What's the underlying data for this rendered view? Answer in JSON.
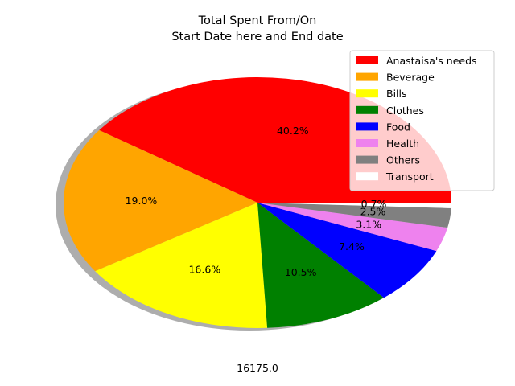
{
  "chart_data": {
    "type": "pie",
    "title_line1": "Total Spent From/On",
    "title_line2": "Start Date here and End date",
    "total_label": "16175.0",
    "shadow": true,
    "start_angle_deg": 0,
    "legend_position": "upper-right",
    "slices": [
      {
        "label": "Anastaisa's needs",
        "percent": 40.2,
        "pct_label": "40.2%",
        "color": "#ff0000"
      },
      {
        "label": "Beverage",
        "percent": 19.0,
        "pct_label": "19.0%",
        "color": "#ffa500"
      },
      {
        "label": "Bills",
        "percent": 16.6,
        "pct_label": "16.6%",
        "color": "#ffff00"
      },
      {
        "label": "Clothes",
        "percent": 10.5,
        "pct_label": "10.5%",
        "color": "#008000"
      },
      {
        "label": "Food",
        "percent": 7.4,
        "pct_label": "7.4%",
        "color": "#0000ff"
      },
      {
        "label": "Health",
        "percent": 3.1,
        "pct_label": "3.1%",
        "color": "#ee82ee"
      },
      {
        "label": "Others",
        "percent": 2.5,
        "pct_label": "2.5%",
        "color": "#808080"
      },
      {
        "label": "Transport",
        "percent": 0.7,
        "pct_label": "0.7%",
        "color": "#ffffff"
      }
    ]
  }
}
